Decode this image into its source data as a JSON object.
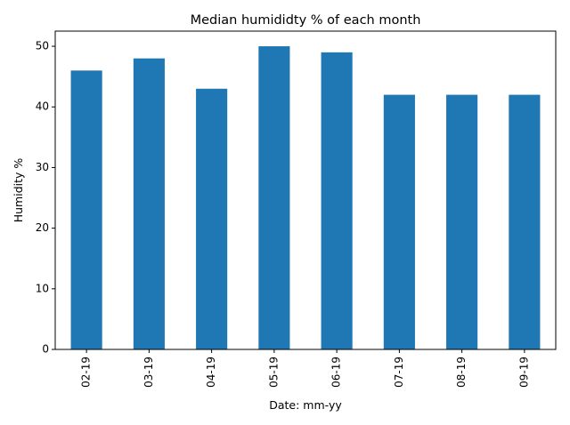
{
  "chart_data": {
    "type": "bar",
    "title": "Median humididty % of each month",
    "xlabel": "Date: mm-yy",
    "ylabel": "Humidity %",
    "categories": [
      "02-19",
      "03-19",
      "04-19",
      "05-19",
      "06-19",
      "07-19",
      "08-19",
      "09-19"
    ],
    "values": [
      46,
      48,
      43,
      50,
      49,
      42,
      42,
      42
    ],
    "ylim": [
      0,
      52.5
    ],
    "yticks": [
      0,
      10,
      20,
      30,
      40,
      50
    ],
    "grid": false,
    "legend": "none",
    "bar_color": "#1f77b4"
  }
}
